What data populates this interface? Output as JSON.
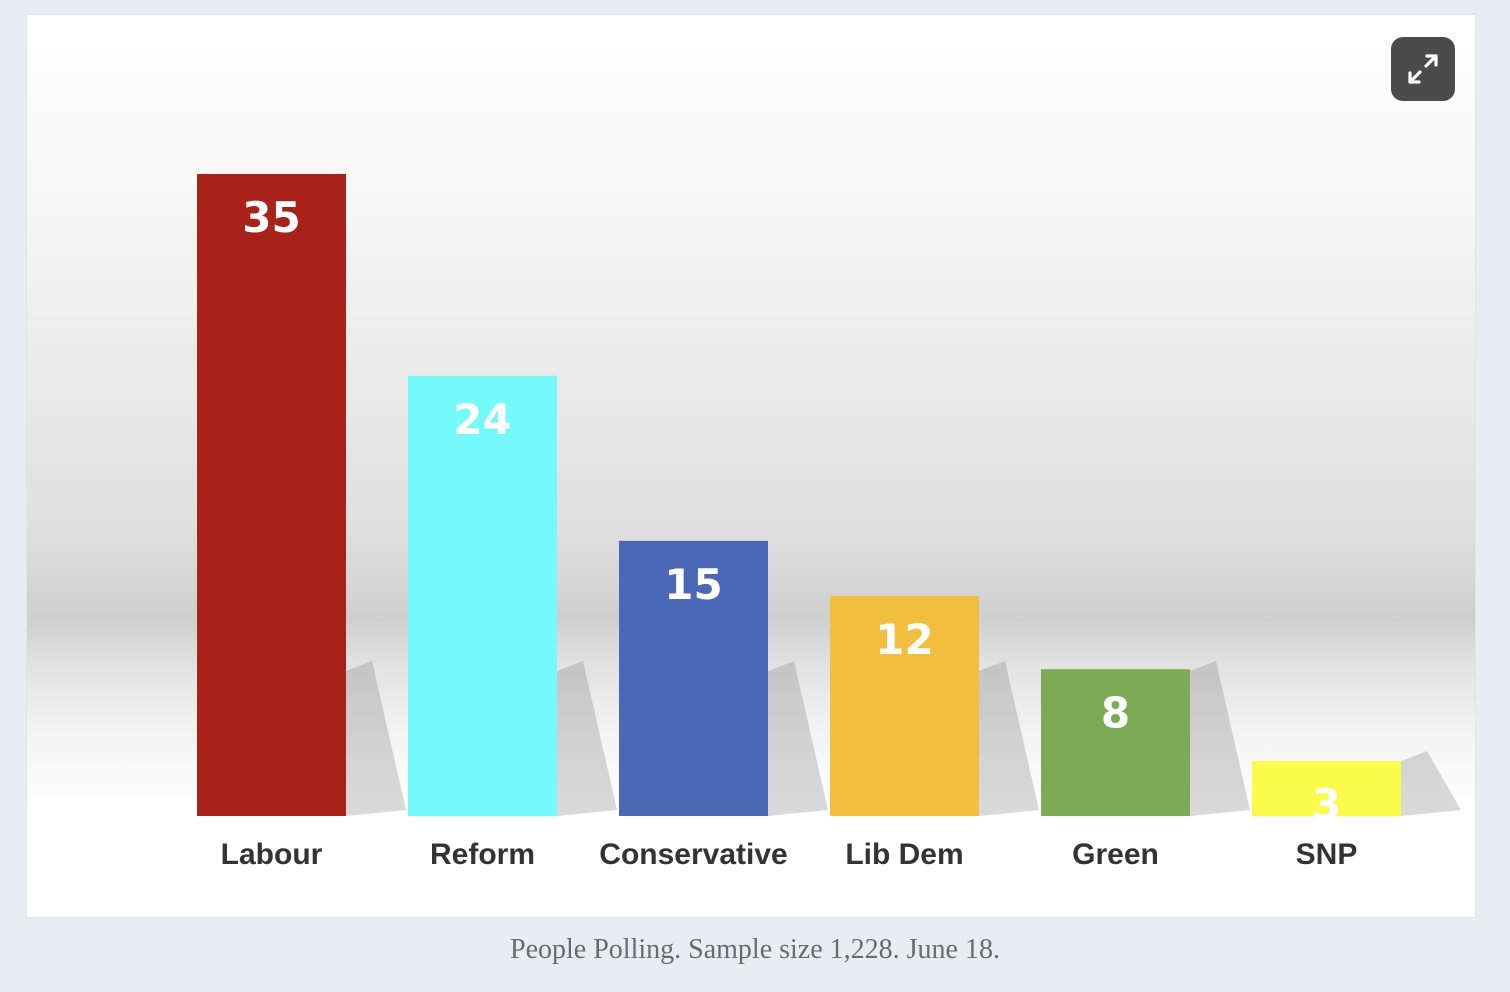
{
  "chart_data": {
    "type": "bar",
    "categories": [
      "Labour",
      "Reform",
      "Conservative",
      "Lib Dem",
      "Green",
      "SNP"
    ],
    "values": [
      35,
      24,
      15,
      12,
      8,
      3
    ],
    "data_labels": [
      "35",
      "24",
      "15",
      "12",
      "8",
      "3"
    ],
    "colors": [
      "#a8221a",
      "#74fafa",
      "#4a68b6",
      "#f2be3e",
      "#7caa55",
      "#fbfb4b"
    ],
    "title": "",
    "xlabel": "",
    "ylabel": "",
    "ylim": [
      0,
      35
    ],
    "grid": false,
    "legend": "none"
  },
  "expand_icon": "expand-arrows-icon",
  "caption": "People Polling. Sample size 1,228. June 18."
}
